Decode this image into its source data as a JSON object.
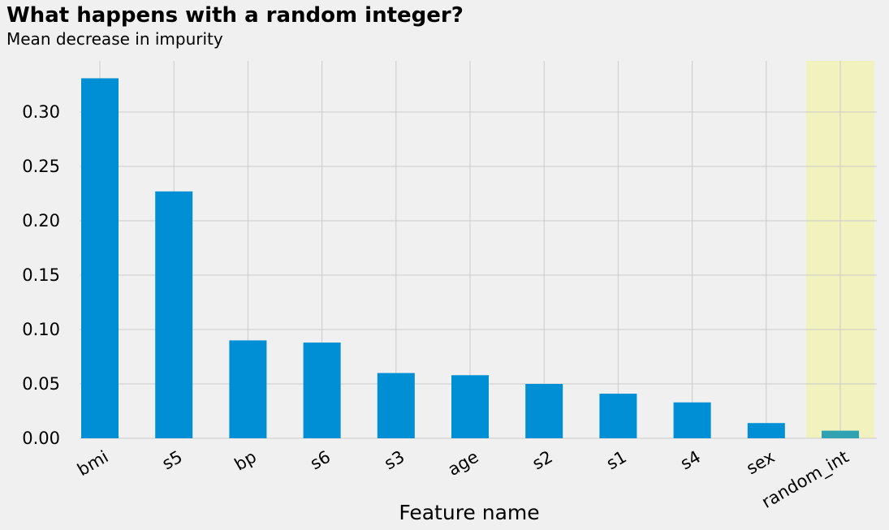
{
  "chart_data": {
    "type": "bar",
    "title": "What happens with a random integer?",
    "subtitle": "Mean decrease in impurity",
    "xlabel": "Feature name",
    "ylabel": "",
    "categories": [
      "bmi",
      "s5",
      "bp",
      "s6",
      "s3",
      "age",
      "s2",
      "s1",
      "s4",
      "sex",
      "random_int"
    ],
    "values": [
      0.331,
      0.227,
      0.09,
      0.088,
      0.06,
      0.058,
      0.05,
      0.041,
      0.033,
      0.014,
      0.007
    ],
    "ylim": [
      0,
      0.347
    ],
    "yticks": [
      "0.00",
      "0.05",
      "0.10",
      "0.15",
      "0.20",
      "0.25",
      "0.30"
    ],
    "grid": true,
    "highlight_category": "random_int",
    "colors": {
      "bar": "#008fd5",
      "highlight_bar": "#30a2b1",
      "highlight_band": "#f2f2bf",
      "grid": "#cbcbcb",
      "background": "#f0f0f0"
    }
  }
}
